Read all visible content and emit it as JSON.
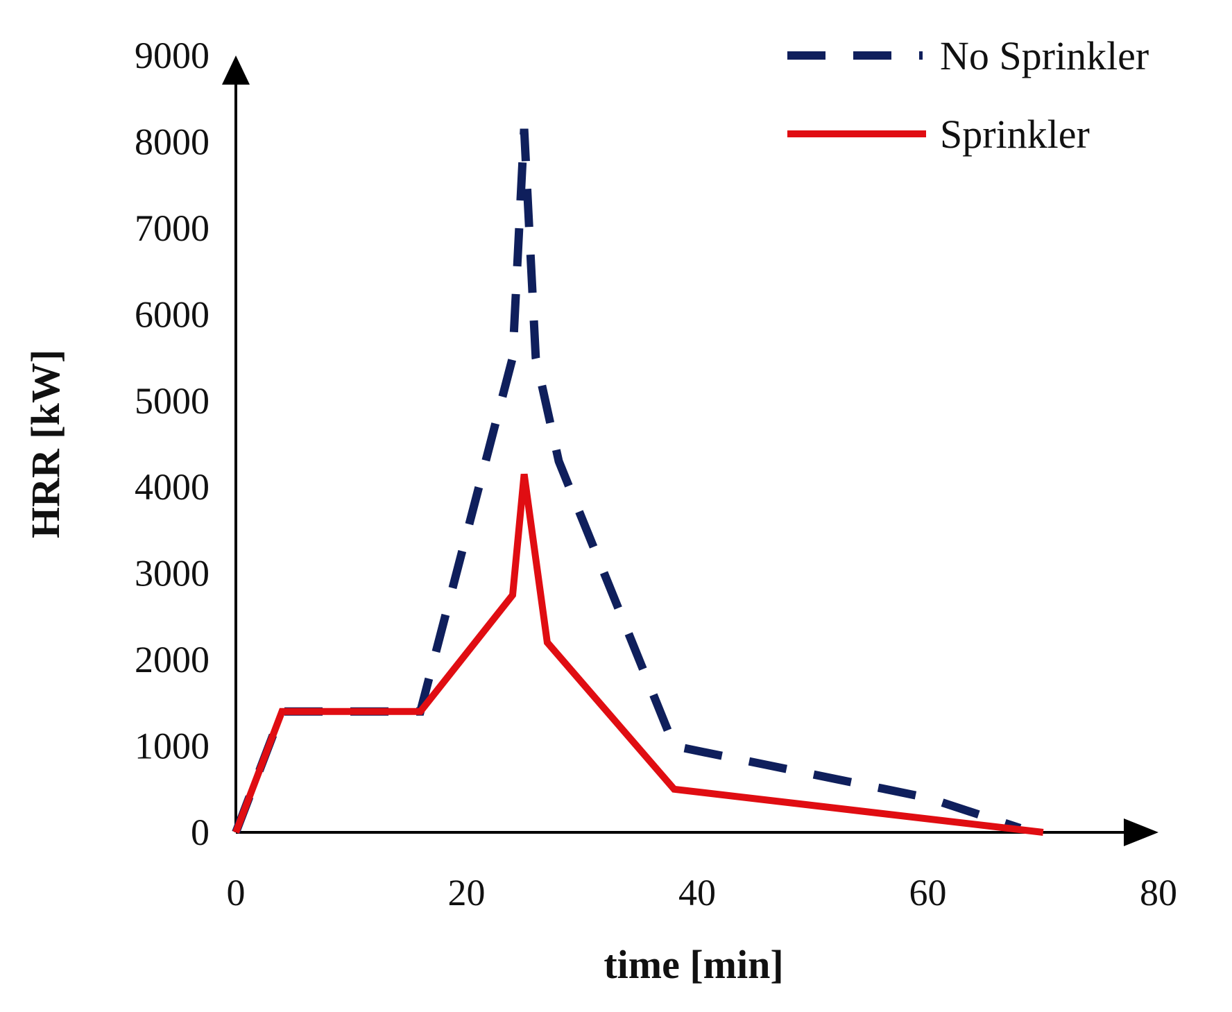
{
  "chart_data": {
    "type": "line",
    "title": "",
    "xlabel": "time [min]",
    "ylabel": "HRR [kW]",
    "xlim": [
      0,
      80
    ],
    "ylim": [
      0,
      9000
    ],
    "x_ticks": [
      0,
      20,
      40,
      60,
      80
    ],
    "y_ticks": [
      0,
      1000,
      2000,
      3000,
      4000,
      5000,
      6000,
      7000,
      8000,
      9000
    ],
    "grid": false,
    "legend_position": "top-right",
    "series": [
      {
        "name": "No Sprinkler",
        "color": "#0f1f5c",
        "style": "dashed",
        "x": [
          0,
          4,
          16,
          24,
          25,
          26,
          28,
          38,
          60,
          68
        ],
        "y": [
          0,
          1400,
          1400,
          5500,
          8150,
          5500,
          4300,
          1000,
          400,
          50
        ]
      },
      {
        "name": "Sprinkler",
        "color": "#e00d12",
        "style": "solid",
        "x": [
          0,
          4,
          16,
          24,
          25,
          27,
          38,
          70
        ],
        "y": [
          0,
          1400,
          1400,
          2750,
          4150,
          2200,
          500,
          0
        ]
      }
    ]
  }
}
